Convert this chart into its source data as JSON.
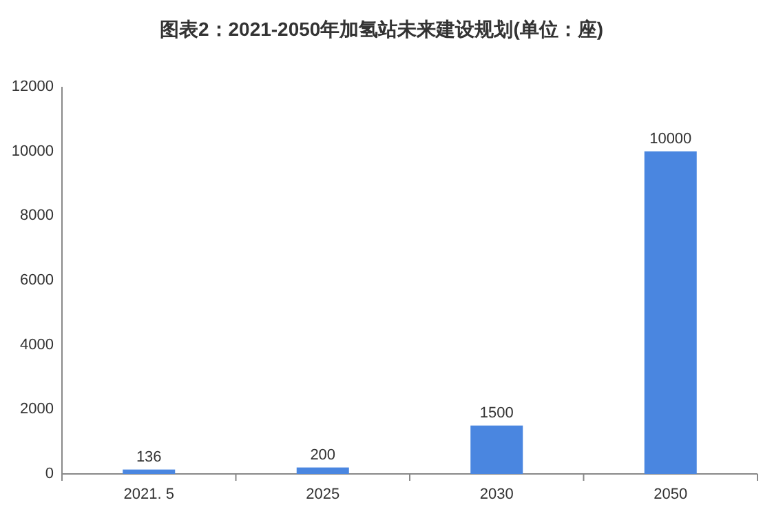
{
  "chart_data": {
    "type": "bar",
    "title": "图表2：2021-2050年加氢站未来建设规划(单位：座)",
    "categories": [
      "2021. 5",
      "2025",
      "2030",
      "2050"
    ],
    "values": [
      136,
      200,
      1500,
      10000
    ],
    "color": "#4a86e0",
    "ylim": [
      0,
      12000
    ],
    "yticks": [
      0,
      2000,
      4000,
      6000,
      8000,
      10000,
      12000
    ],
    "data_labels": true,
    "grid": false
  }
}
